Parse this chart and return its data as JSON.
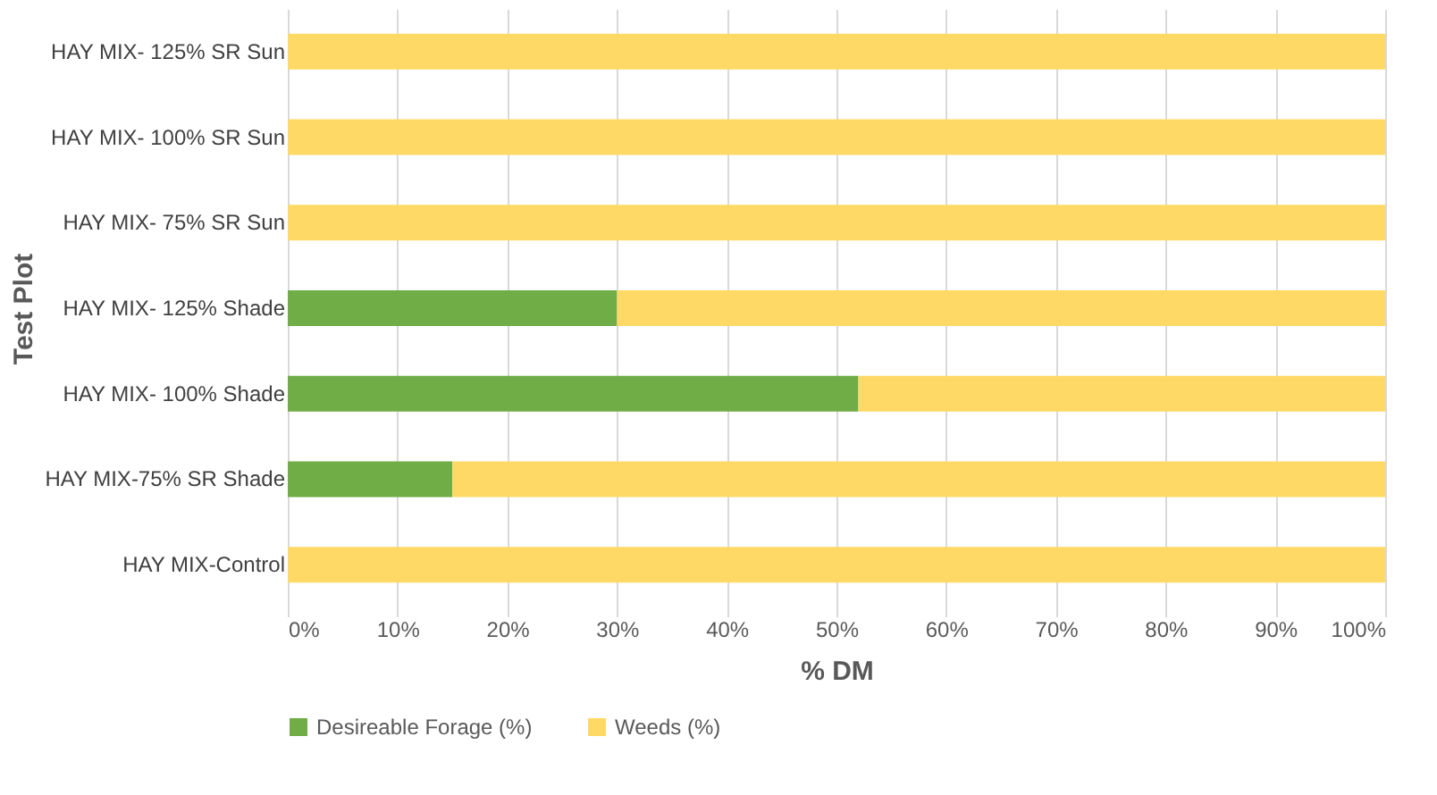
{
  "chart_data": {
    "type": "bar",
    "orientation": "horizontal",
    "stacked": true,
    "xlabel": "% DM",
    "ylabel": "Test Plot",
    "categories": [
      "HAY MIX- 125% SR Sun",
      "HAY MIX- 100% SR Sun",
      "HAY MIX- 75% SR Sun",
      "HAY MIX- 125% Shade",
      "HAY MIX- 100% Shade",
      "HAY MIX-75% SR Shade",
      "HAY MIX-Control"
    ],
    "series": [
      {
        "name": "Desireable Forage (%)",
        "color": "#70ad47",
        "values": [
          0,
          0,
          0,
          30,
          52,
          15,
          0
        ]
      },
      {
        "name": "Weeds (%)",
        "color": "#ffd966",
        "values": [
          100,
          100,
          100,
          70,
          48,
          85,
          100
        ]
      }
    ],
    "xlim": [
      0,
      100
    ],
    "xticks": [
      {
        "value": 0,
        "label": "0%"
      },
      {
        "value": 10,
        "label": "10%"
      },
      {
        "value": 20,
        "label": "20%"
      },
      {
        "value": 30,
        "label": "30%"
      },
      {
        "value": 40,
        "label": "40%"
      },
      {
        "value": 50,
        "label": "50%"
      },
      {
        "value": 60,
        "label": "60%"
      },
      {
        "value": 70,
        "label": "70%"
      },
      {
        "value": 80,
        "label": "80%"
      },
      {
        "value": 90,
        "label": "90%"
      },
      {
        "value": 100,
        "label": "100%"
      }
    ],
    "grid": "x",
    "legend": "bottom"
  }
}
